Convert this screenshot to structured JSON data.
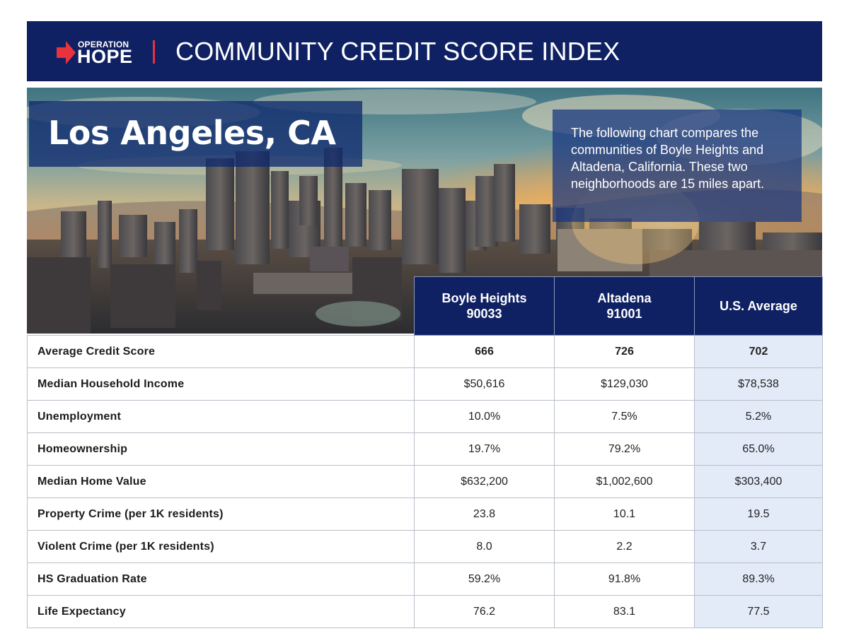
{
  "header": {
    "logo_top": "OPERATION",
    "logo_bottom": "HOPE",
    "title": "COMMUNITY CREDIT SCORE INDEX"
  },
  "hero": {
    "city": "Los Angeles, CA",
    "description": "The following chart compares the communities of Boyle Heights and Altadena, California. These two neighborhoods are 15 miles apart."
  },
  "table": {
    "columns": [
      {
        "line1": "Boyle Heights",
        "line2": "90033"
      },
      {
        "line1": "Altadena",
        "line2": "91001"
      },
      {
        "line1": "U.S. Average",
        "line2": ""
      }
    ],
    "rows": [
      {
        "label": "Average Credit Score",
        "values": [
          "666",
          "726",
          "702"
        ]
      },
      {
        "label": "Median Household Income",
        "values": [
          "$50,616",
          "$129,030",
          "$78,538"
        ]
      },
      {
        "label": "Unemployment",
        "values": [
          "10.0%",
          "7.5%",
          "5.2%"
        ]
      },
      {
        "label": "Homeownership",
        "values": [
          "19.7%",
          "79.2%",
          "65.0%"
        ]
      },
      {
        "label": "Median Home Value",
        "values": [
          "$632,200",
          "$1,002,600",
          "$303,400"
        ]
      },
      {
        "label": "Property Crime (per 1K residents)",
        "values": [
          "23.8",
          "10.1",
          "19.5"
        ]
      },
      {
        "label": "Violent Crime (per 1K residents)",
        "values": [
          "8.0",
          "2.2",
          "3.7"
        ]
      },
      {
        "label": "HS Graduation Rate",
        "values": [
          "59.2%",
          "91.8%",
          "89.3%"
        ]
      },
      {
        "label": "Life Expectancy",
        "values": [
          "76.2",
          "83.1",
          "77.5"
        ]
      }
    ]
  },
  "colors": {
    "navy": "#0f2163",
    "brand_red": "#e8323c",
    "us_column_tint": "#e3ebf8"
  }
}
